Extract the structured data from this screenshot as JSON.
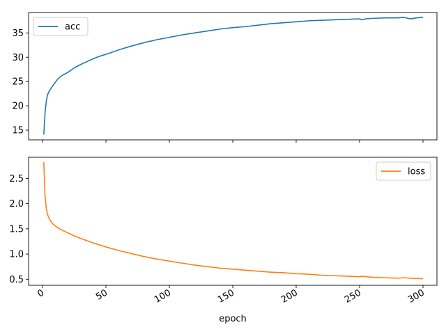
{
  "chart_data": [
    {
      "type": "line",
      "xlabel": "",
      "ylabel": "",
      "xlim": [
        -11,
        311
      ],
      "ylim": [
        13,
        39.2
      ],
      "yticks": [
        15,
        20,
        25,
        30,
        35
      ],
      "xticks": [
        0,
        50,
        100,
        150,
        200,
        250,
        300
      ],
      "show_xtick_labels": false,
      "grid": false,
      "legend": "upper-left",
      "series": [
        {
          "name": "acc",
          "color": "#1f77b4",
          "x": [
            1,
            2,
            3,
            4,
            5,
            6,
            8,
            10,
            12,
            15,
            18,
            20,
            25,
            30,
            35,
            40,
            45,
            50,
            60,
            70,
            80,
            90,
            100,
            110,
            120,
            130,
            140,
            150,
            160,
            170,
            180,
            190,
            200,
            210,
            220,
            230,
            240,
            250,
            252,
            255,
            260,
            270,
            280,
            285,
            290,
            295,
            300
          ],
          "y": [
            14.1,
            18.6,
            21.0,
            22.3,
            22.9,
            23.3,
            24.1,
            24.8,
            25.5,
            26.2,
            26.6,
            26.9,
            27.8,
            28.5,
            29.1,
            29.7,
            30.2,
            30.6,
            31.5,
            32.3,
            33.0,
            33.6,
            34.1,
            34.6,
            35.0,
            35.4,
            35.8,
            36.1,
            36.3,
            36.6,
            36.9,
            37.1,
            37.3,
            37.5,
            37.6,
            37.7,
            37.8,
            37.9,
            37.7,
            37.9,
            38.0,
            38.1,
            38.1,
            38.2,
            37.9,
            38.1,
            38.2
          ]
        }
      ]
    },
    {
      "type": "line",
      "xlabel": "epoch",
      "ylabel": "",
      "xlim": [
        -11,
        311
      ],
      "ylim": [
        0.38,
        2.92
      ],
      "yticks": [
        0.5,
        1.0,
        1.5,
        2.0,
        2.5
      ],
      "yticklabels": [
        "0.5",
        "1.0",
        "1.5",
        "2.0",
        "2.5"
      ],
      "xticks": [
        0,
        50,
        100,
        150,
        200,
        250,
        300
      ],
      "xticklabels": [
        "0",
        "50",
        "100",
        "150",
        "200",
        "250",
        "300"
      ],
      "grid": false,
      "legend": "upper-right",
      "series": [
        {
          "name": "loss",
          "color": "#ff7f0e",
          "x": [
            1,
            2,
            3,
            4,
            5,
            6,
            8,
            10,
            12,
            15,
            20,
            25,
            30,
            40,
            50,
            60,
            70,
            80,
            90,
            100,
            110,
            120,
            130,
            140,
            150,
            160,
            170,
            180,
            190,
            200,
            210,
            220,
            230,
            240,
            250,
            252,
            255,
            260,
            270,
            280,
            285,
            290,
            300
          ],
          "y": [
            2.82,
            2.15,
            1.9,
            1.78,
            1.72,
            1.67,
            1.6,
            1.56,
            1.52,
            1.48,
            1.42,
            1.36,
            1.31,
            1.22,
            1.14,
            1.07,
            1.01,
            0.95,
            0.9,
            0.86,
            0.82,
            0.78,
            0.75,
            0.72,
            0.7,
            0.68,
            0.66,
            0.64,
            0.63,
            0.61,
            0.6,
            0.58,
            0.57,
            0.56,
            0.55,
            0.56,
            0.55,
            0.54,
            0.53,
            0.52,
            0.53,
            0.52,
            0.51
          ]
        }
      ]
    }
  ]
}
